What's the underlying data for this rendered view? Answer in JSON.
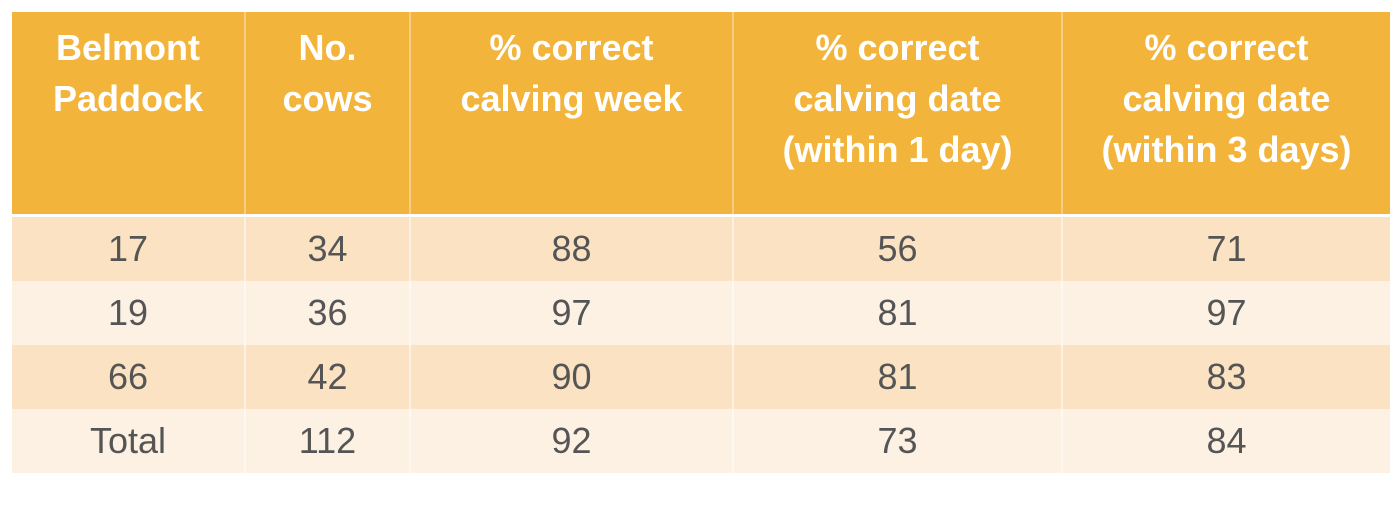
{
  "table": {
    "headers": [
      [
        "Belmont",
        "Paddock"
      ],
      [
        "No.",
        "cows"
      ],
      [
        "% correct",
        "calving week"
      ],
      [
        "% correct",
        "calving date",
        "(within 1 day)"
      ],
      [
        "% correct",
        "calving date",
        "(within 3 days)"
      ]
    ],
    "rows": [
      [
        17,
        34,
        88,
        56,
        71
      ],
      [
        19,
        36,
        97,
        81,
        97
      ],
      [
        66,
        42,
        90,
        81,
        83
      ],
      [
        "Total",
        112,
        92,
        73,
        84
      ]
    ]
  }
}
